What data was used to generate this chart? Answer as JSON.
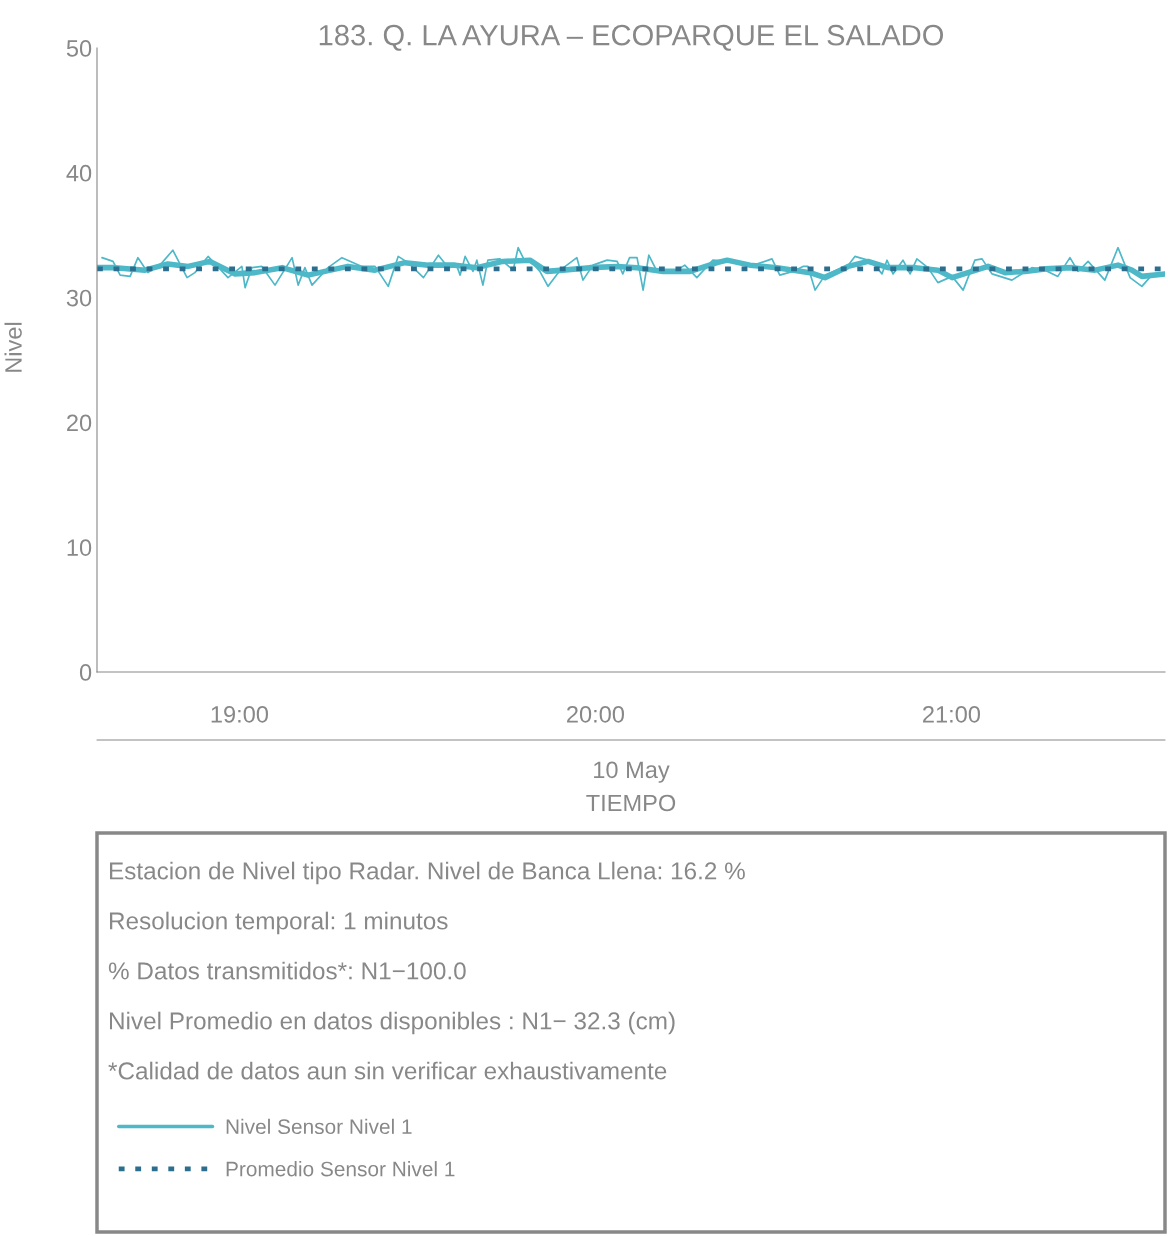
{
  "chart_data": {
    "type": "line",
    "title": "183. Q. LA AYURA – ECOPARQUE EL SALADO",
    "xlabel": "TIEMPO",
    "ylabel": "Nivel",
    "xlim": [
      18.6,
      21.6
    ],
    "xticks": [
      {
        "value": 19,
        "label": "19:00"
      },
      {
        "value": 20,
        "label": "20:00"
      },
      {
        "value": 21,
        "label": "21:00"
      }
    ],
    "ylim": [
      0,
      50
    ],
    "yticks": [
      0,
      10,
      20,
      30,
      40,
      50
    ],
    "grid": false,
    "legend": "bottom",
    "series": [
      {
        "name": "Nivel Sensor Nivel 1",
        "color": "#4db8c8",
        "x": [
          18.614,
          18.645,
          18.665,
          18.693,
          18.715,
          18.743,
          18.783,
          18.813,
          18.853,
          18.875,
          18.912,
          18.968,
          19.007,
          19.016,
          19.035,
          19.063,
          19.1,
          19.148,
          19.165,
          19.184,
          19.204,
          19.249,
          19.288,
          19.344,
          19.381,
          19.418,
          19.446,
          19.474,
          19.517,
          19.559,
          19.587,
          19.611,
          19.62,
          19.634,
          19.656,
          19.667,
          19.684,
          19.698,
          19.732,
          19.769,
          19.783,
          19.802,
          19.816,
          19.844,
          19.867,
          19.901,
          19.948,
          19.965,
          19.993,
          20.033,
          20.061,
          20.077,
          20.096,
          20.117,
          20.134,
          20.15,
          20.173,
          20.229,
          20.251,
          20.285,
          20.33,
          20.378,
          20.434,
          20.496,
          20.518,
          20.555,
          20.583,
          20.597,
          20.617,
          20.645,
          20.71,
          20.729,
          20.777,
          20.805,
          20.819,
          20.836,
          20.864,
          20.884,
          20.903,
          20.934,
          20.962,
          21.002,
          21.033,
          21.066,
          21.086,
          21.114,
          21.17,
          21.226,
          21.263,
          21.299,
          21.333,
          21.356,
          21.384,
          21.431,
          21.468,
          21.502,
          21.535,
          21.563,
          21.6
        ],
        "values": [
          33.2,
          32.9,
          31.8,
          31.7,
          33.2,
          32.0,
          32.8,
          33.8,
          31.6,
          32.0,
          33.3,
          31.6,
          32.5,
          30.8,
          32.4,
          32.5,
          31.0,
          33.2,
          31.0,
          32.4,
          31.0,
          32.4,
          33.2,
          32.5,
          32.5,
          30.9,
          33.3,
          32.8,
          31.6,
          33.4,
          32.4,
          32.5,
          31.8,
          33.3,
          32.1,
          33.0,
          31.0,
          33.0,
          33.1,
          32.2,
          34.0,
          32.9,
          33.0,
          32.1,
          30.9,
          32.2,
          33.2,
          31.4,
          32.6,
          33.0,
          32.9,
          31.9,
          33.2,
          33.2,
          30.6,
          33.4,
          32.1,
          32.2,
          32.6,
          31.6,
          33.0,
          32.9,
          32.5,
          33.1,
          31.8,
          32.1,
          32.5,
          32.5,
          30.6,
          31.8,
          32.6,
          33.3,
          32.9,
          31.9,
          33.0,
          31.9,
          33.0,
          31.9,
          33.1,
          32.4,
          31.2,
          31.7,
          30.6,
          33.0,
          33.1,
          31.9,
          31.4,
          32.4,
          32.2,
          31.7,
          33.2,
          32.1,
          32.9,
          31.4,
          34.0,
          31.6,
          30.9,
          31.8,
          31.9
        ]
      },
      {
        "color": "#4db8c8",
        "x": [
          18.6,
          18.651,
          18.735,
          18.799,
          18.856,
          18.917,
          18.988,
          19.044,
          19.12,
          19.193,
          19.24,
          19.305,
          19.381,
          19.465,
          19.53,
          19.606,
          19.667,
          19.74,
          19.816,
          19.864,
          19.909,
          19.985,
          20.061,
          20.117,
          20.19,
          20.266,
          20.342,
          20.37,
          20.434,
          20.51,
          20.603,
          20.645,
          20.71,
          20.766,
          20.822,
          20.898,
          20.962,
          21.002,
          21.058,
          21.103,
          21.151,
          21.207,
          21.263,
          21.339,
          21.403,
          21.468,
          21.507,
          21.535,
          21.6
        ],
        "values": [
          32.4,
          32.4,
          32.2,
          32.7,
          32.5,
          32.9,
          31.9,
          32.0,
          32.4,
          31.8,
          32.1,
          32.5,
          32.2,
          32.8,
          32.6,
          32.6,
          32.4,
          32.9,
          33.0,
          32.1,
          32.2,
          32.4,
          32.5,
          32.4,
          32.1,
          32.1,
          32.8,
          33.0,
          32.6,
          32.4,
          32.0,
          31.6,
          32.5,
          32.9,
          32.4,
          32.4,
          32.2,
          31.6,
          32.1,
          32.5,
          32.0,
          32.1,
          32.3,
          32.4,
          32.2,
          32.6,
          32.2,
          31.7,
          31.9
        ]
      },
      {
        "name": "Promedio Sensor Nivel 1",
        "color": "#2c6e8e",
        "line_style": "dotted",
        "x": [
          18.6,
          21.6
        ],
        "values": [
          32.3,
          32.3
        ]
      }
    ],
    "annotations": [
      "10 May",
      "Estacion de Nivel tipo Radar. Nivel de Banca Llena: 16.2 %",
      "Resolucion temporal: 1 minutos",
      "% Datos transmitidos*: N1−100.0",
      "Nivel Promedio en datos disponibles : N1− 32.3 (cm)",
      "*Calidad de datos aun sin verificar exhaustivamente"
    ]
  }
}
